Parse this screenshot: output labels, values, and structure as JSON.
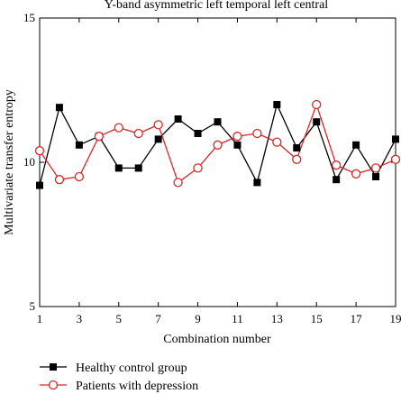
{
  "chart_data": {
    "type": "line",
    "title": "Y-band asymmetric left temporal left central",
    "xlabel": "Combination number",
    "ylabel": "Multivariate transfer entropy",
    "xlim": [
      1,
      19
    ],
    "ylim": [
      5,
      15
    ],
    "x_ticks": [
      "1",
      "3",
      "5",
      "7",
      "9",
      "11",
      "13",
      "15",
      "17",
      "19"
    ],
    "y_ticks": [
      "5",
      "10",
      "15"
    ],
    "grid": false,
    "legend_position": "bottom-left",
    "x": [
      1,
      2,
      3,
      4,
      5,
      6,
      7,
      8,
      9,
      10,
      11,
      12,
      13,
      14,
      15,
      16,
      17,
      18,
      19
    ],
    "series": [
      {
        "name": "Healthy control group",
        "color": "#000000",
        "marker": "square",
        "values": [
          9.2,
          11.9,
          10.6,
          10.9,
          9.8,
          9.8,
          10.8,
          11.5,
          11.0,
          11.4,
          10.6,
          9.3,
          12.0,
          10.5,
          11.4,
          9.4,
          10.6,
          9.5,
          10.8
        ]
      },
      {
        "name": "Patients with depression",
        "color": "#d62728",
        "marker": "circle-open",
        "values": [
          10.4,
          9.4,
          9.5,
          10.9,
          11.2,
          11.0,
          11.3,
          9.3,
          9.8,
          10.6,
          10.9,
          11.0,
          10.7,
          10.1,
          12.0,
          9.9,
          9.6,
          9.8,
          10.1
        ]
      }
    ]
  }
}
